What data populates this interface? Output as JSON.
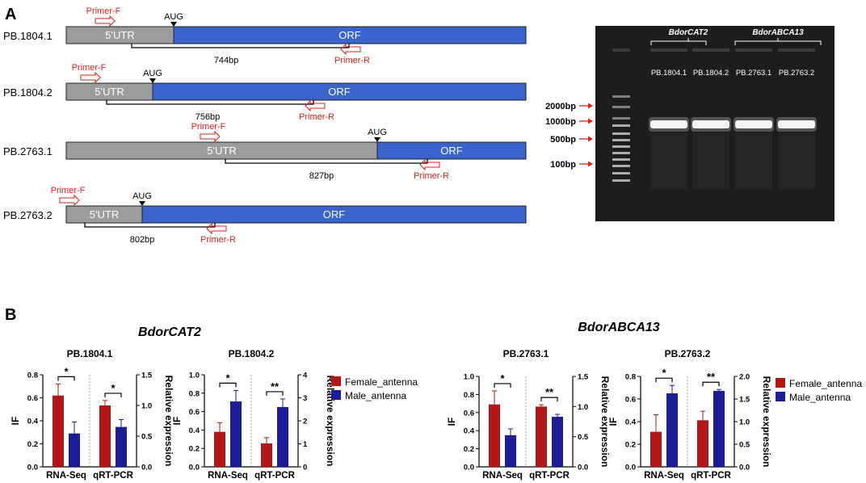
{
  "panel_a": {
    "label": "A",
    "aug_label": "AUG",
    "primer_f": "Primer-F",
    "primer_r": "Primer-R",
    "utr_label": "5'UTR",
    "orf_label": "ORF",
    "transcripts": [
      {
        "name": "PB.1804.1",
        "size": "744bp"
      },
      {
        "name": "PB.1804.2",
        "size": "756bp"
      },
      {
        "name": "PB.2763.1",
        "size": "827bp"
      },
      {
        "name": "PB.2763.2",
        "size": "802bp"
      }
    ],
    "gel": {
      "groups": [
        "BdorCAT2",
        "BdorABCA13"
      ],
      "lanes": [
        "PB.1804.1",
        "PB.1804.2",
        "PB.2763.1",
        "PB.2763.2"
      ],
      "markers": [
        "2000bp",
        "1000bp",
        "500bp",
        "100bp"
      ]
    }
  },
  "panel_b": {
    "label": "B",
    "genes": [
      "BdorCAT2",
      "BdorABCA13"
    ],
    "legend": [
      {
        "name": "Female_antenna",
        "color": "#b01818"
      },
      {
        "name": "Male_antenna",
        "color": "#1c1c96"
      }
    ],
    "y_left_label": "IF",
    "y_right_label": "Relative expression"
  },
  "chart_data": [
    {
      "type": "bar",
      "title": "PB.1804.1",
      "categories": [
        "RNA-Seq",
        "qRT-PCR"
      ],
      "ylabel": "IF",
      "y2label": "Relative expression",
      "ylim": [
        0,
        0.8
      ],
      "y2lim": [
        0,
        1.5
      ],
      "yticks": [
        "0.0",
        "0.2",
        "0.4",
        "0.6",
        "0.8"
      ],
      "y2ticks": [
        "0.0",
        "0.5",
        "1.0",
        "1.5"
      ],
      "series": [
        {
          "name": "Female_antenna",
          "values": [
            0.62,
            1.0
          ],
          "errors": [
            0.1,
            0.08
          ]
        },
        {
          "name": "Male_antenna",
          "values": [
            0.29,
            0.65
          ],
          "errors": [
            0.1,
            0.12
          ]
        }
      ],
      "significance": [
        "*",
        "*"
      ]
    },
    {
      "type": "bar",
      "title": "PB.1804.2",
      "categories": [
        "RNA-Seq",
        "qRT-PCR"
      ],
      "ylabel": "IF",
      "y2label": "Relative expression",
      "ylim": [
        0,
        1.0
      ],
      "y2lim": [
        0,
        4
      ],
      "yticks": [
        "0.0",
        "0.2",
        "0.4",
        "0.6",
        "0.8",
        "1.0"
      ],
      "y2ticks": [
        "0",
        "1",
        "2",
        "3",
        "4"
      ],
      "series": [
        {
          "name": "Female_antenna",
          "values": [
            0.38,
            1.02
          ],
          "errors": [
            0.1,
            0.25
          ]
        },
        {
          "name": "Male_antenna",
          "values": [
            0.71,
            2.6
          ],
          "errors": [
            0.12,
            0.35
          ]
        }
      ],
      "significance": [
        "*",
        "**"
      ]
    },
    {
      "type": "bar",
      "title": "PB.2763.1",
      "categories": [
        "RNA-Seq",
        "qRT-PCR"
      ],
      "ylabel": "IF",
      "y2label": "Relative expression",
      "ylim": [
        0,
        1.0
      ],
      "y2lim": [
        0,
        1.5
      ],
      "yticks": [
        "0.0",
        "0.2",
        "0.4",
        "0.6",
        "0.8",
        "1.0"
      ],
      "y2ticks": [
        "0.0",
        "0.5",
        "1.0",
        "1.5"
      ],
      "series": [
        {
          "name": "Female_antenna",
          "values": [
            0.69,
            1.0
          ],
          "errors": [
            0.15,
            0.03
          ]
        },
        {
          "name": "Male_antenna",
          "values": [
            0.35,
            0.83
          ],
          "errors": [
            0.07,
            0.04
          ]
        }
      ],
      "significance": [
        "*",
        "**"
      ]
    },
    {
      "type": "bar",
      "title": "PB.2763.2",
      "categories": [
        "RNA-Seq",
        "qRT-PCR"
      ],
      "ylabel": "IF",
      "y2label": "Relative expression",
      "ylim": [
        0,
        0.8
      ],
      "y2lim": [
        0,
        2.0
      ],
      "yticks": [
        "0.0",
        "0.2",
        "0.4",
        "0.6",
        "0.8"
      ],
      "y2ticks": [
        "0.0",
        "0.5",
        "1.0",
        "1.5",
        "2.0"
      ],
      "series": [
        {
          "name": "Female_antenna",
          "values": [
            0.31,
            1.03
          ],
          "errors": [
            0.15,
            0.2
          ]
        },
        {
          "name": "Male_antenna",
          "values": [
            0.65,
            1.68
          ],
          "errors": [
            0.07,
            0.03
          ]
        }
      ],
      "significance": [
        "*",
        "**"
      ]
    }
  ]
}
